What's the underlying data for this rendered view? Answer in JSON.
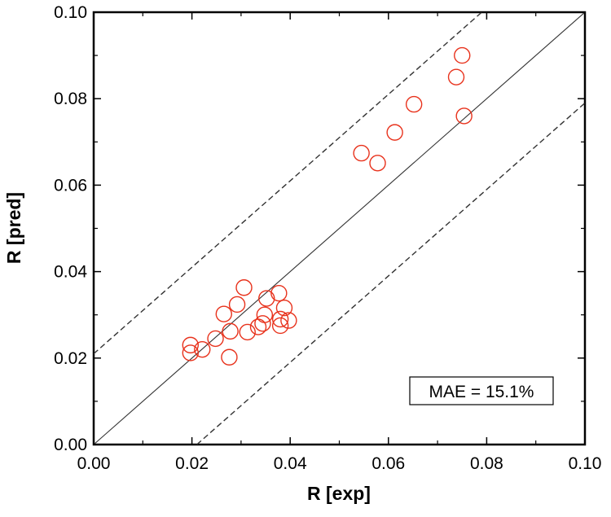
{
  "chart_data": {
    "type": "scatter",
    "title": "",
    "xlabel": "R [exp]",
    "ylabel": "R [pred]",
    "xlim": [
      0,
      0.1
    ],
    "ylim": [
      0,
      0.1
    ],
    "xticks": [
      "0.00",
      "0.02",
      "0.04",
      "0.06",
      "0.08",
      "0.10"
    ],
    "yticks": [
      "0.00",
      "0.02",
      "0.04",
      "0.06",
      "0.08",
      "0.10"
    ],
    "grid": false,
    "marker": "open-circle",
    "marker_color": "#e8321c",
    "reference_lines": [
      {
        "name": "parity",
        "style": "solid",
        "x": [
          0,
          0.1
        ],
        "y": [
          0,
          0.1
        ]
      },
      {
        "name": "upper-bound",
        "style": "dashed",
        "x": [
          0,
          0.1
        ],
        "y": [
          0.021,
          0.121
        ]
      },
      {
        "name": "lower-bound",
        "style": "dashed",
        "x": [
          0.021,
          0.1
        ],
        "y": [
          0,
          0.079
        ]
      }
    ],
    "annotation": "MAE = 15.1%",
    "annotation_position": "bottom-right",
    "series": [
      {
        "name": "R",
        "points": [
          [
            0.0197,
            0.023
          ],
          [
            0.0197,
            0.0212
          ],
          [
            0.0221,
            0.022
          ],
          [
            0.0248,
            0.0245
          ],
          [
            0.0276,
            0.0202
          ],
          [
            0.0278,
            0.0262
          ],
          [
            0.0265,
            0.0302
          ],
          [
            0.0292,
            0.0324
          ],
          [
            0.0306,
            0.0363
          ],
          [
            0.0313,
            0.026
          ],
          [
            0.0335,
            0.0272
          ],
          [
            0.0344,
            0.028
          ],
          [
            0.0348,
            0.03
          ],
          [
            0.0352,
            0.0338
          ],
          [
            0.0377,
            0.035
          ],
          [
            0.038,
            0.029
          ],
          [
            0.038,
            0.0275
          ],
          [
            0.0388,
            0.0316
          ],
          [
            0.0397,
            0.0287
          ],
          [
            0.0545,
            0.0674
          ],
          [
            0.0578,
            0.0651
          ],
          [
            0.0613,
            0.0722
          ],
          [
            0.0652,
            0.0787
          ],
          [
            0.0738,
            0.085
          ],
          [
            0.075,
            0.09
          ],
          [
            0.0754,
            0.076
          ]
        ]
      }
    ]
  }
}
